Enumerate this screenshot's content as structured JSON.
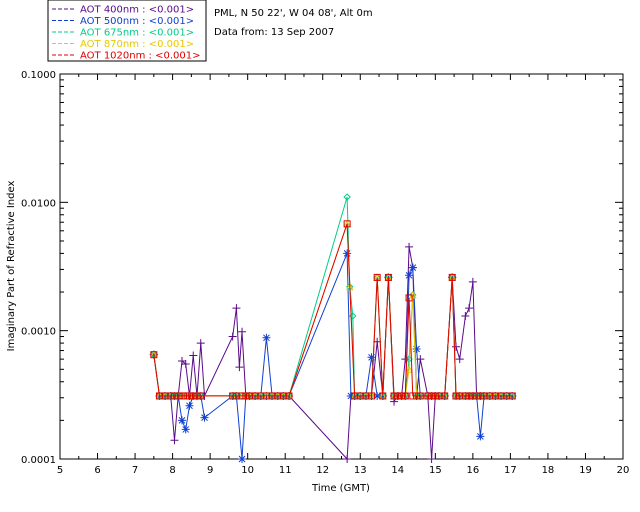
{
  "header": {
    "site": "PML, N 50 22', W 04 08', Alt 0m",
    "date": "Data from: 13 Sep 2007"
  },
  "colors": {
    "400": "#5a0a8a",
    "500": "#1040d0",
    "675": "#00cc88",
    "870": "#e8c800",
    "1020": "#e00000"
  },
  "chart_data": {
    "type": "line",
    "title": "",
    "xlabel": "Time (GMT)",
    "ylabel": "Imaginary Part of Refractive Index",
    "xlim": [
      5,
      20
    ],
    "ylim": [
      0.0001,
      0.1
    ],
    "yscale": "log",
    "x_ticks": [
      "5",
      "6",
      "7",
      "8",
      "9",
      "10",
      "11",
      "12",
      "13",
      "14",
      "15",
      "16",
      "17",
      "18",
      "19",
      "20"
    ],
    "y_ticks": [
      "0.0001",
      "0.0010",
      "0.0100",
      "0.1000"
    ],
    "legend_position": "top-left-outside",
    "series": [
      {
        "name": "AOT  400nm : <0.001>",
        "color_key": "400",
        "marker": "plus",
        "x": [
          7.5,
          7.65,
          7.8,
          7.95,
          8.05,
          8.15,
          8.25,
          8.35,
          8.45,
          8.55,
          8.65,
          8.75,
          8.85,
          9.6,
          9.7,
          9.78,
          9.85,
          9.95,
          10.05,
          10.2,
          10.35,
          10.5,
          10.65,
          10.8,
          10.95,
          11.1,
          12.65,
          12.75,
          12.85,
          13.0,
          13.15,
          13.3,
          13.45,
          13.6,
          13.75,
          13.9,
          14.0,
          14.1,
          14.2,
          14.3,
          14.4,
          14.5,
          14.6,
          14.8,
          14.9,
          15.0,
          15.1,
          15.25,
          15.45,
          15.55,
          15.65,
          15.8,
          15.9,
          16.0,
          16.1,
          16.2,
          16.3,
          16.45,
          16.6,
          16.75,
          16.9,
          17.05
        ],
        "y": [
          0.00065,
          0.00031,
          0.00031,
          0.00031,
          0.00014,
          0.00031,
          0.00058,
          0.00055,
          0.00031,
          0.00064,
          0.00031,
          0.0008,
          0.00031,
          0.0009,
          0.0015,
          0.00052,
          0.00098,
          0.00031,
          0.00031,
          0.00031,
          0.00031,
          0.00031,
          0.00031,
          0.00031,
          0.00031,
          0.00031,
          0.0001,
          0.00031,
          0.00031,
          0.00031,
          0.00031,
          0.00031,
          0.00082,
          0.00031,
          0.0026,
          0.00028,
          0.00031,
          0.00031,
          0.0006,
          0.0045,
          0.0031,
          0.00031,
          0.0006,
          0.00031,
          0.0001,
          0.00031,
          0.00031,
          0.00031,
          0.0026,
          0.00075,
          0.0006,
          0.0013,
          0.0015,
          0.0024,
          0.00031,
          0.00031,
          0.00031,
          0.00031,
          0.00031,
          0.00031,
          0.00031,
          0.00031
        ]
      },
      {
        "name": "AOT  500nm : <0.001>",
        "color_key": "500",
        "marker": "asterisk",
        "x": [
          7.5,
          7.65,
          7.8,
          7.95,
          8.05,
          8.15,
          8.25,
          8.35,
          8.45,
          8.55,
          8.65,
          8.75,
          8.85,
          9.6,
          9.7,
          9.85,
          9.95,
          10.05,
          10.2,
          10.35,
          10.5,
          10.65,
          10.8,
          10.95,
          11.1,
          12.65,
          12.75,
          12.85,
          13.0,
          13.15,
          13.3,
          13.45,
          13.6,
          13.75,
          13.9,
          14.0,
          14.1,
          14.2,
          14.3,
          14.4,
          14.5,
          14.6,
          14.8,
          14.9,
          15.0,
          15.1,
          15.25,
          15.45,
          15.55,
          15.65,
          15.8,
          15.9,
          16.0,
          16.1,
          16.2,
          16.3,
          16.45,
          16.6,
          16.75,
          16.9,
          17.05
        ],
        "y": [
          0.00065,
          0.00031,
          0.00031,
          0.00031,
          0.00031,
          0.00031,
          0.0002,
          0.00017,
          0.00026,
          0.00031,
          0.00031,
          0.00031,
          0.00021,
          0.00031,
          0.00031,
          0.0001,
          0.00031,
          0.00031,
          0.00031,
          0.00031,
          0.00088,
          0.00031,
          0.00031,
          0.00031,
          0.00031,
          0.004,
          0.00031,
          0.00031,
          0.00031,
          0.00031,
          0.00062,
          0.00031,
          0.00031,
          0.0026,
          0.00031,
          0.00031,
          0.00031,
          0.00031,
          0.0027,
          0.0031,
          0.00072,
          0.00031,
          0.00031,
          0.00031,
          0.00031,
          0.00031,
          0.00031,
          0.0026,
          0.00031,
          0.00031,
          0.00031,
          0.00031,
          0.00031,
          0.00031,
          0.00015,
          0.00031,
          0.00031,
          0.00031,
          0.00031,
          0.00031,
          0.00031
        ]
      },
      {
        "name": "AOT  675nm : <0.001>",
        "color_key": "675",
        "marker": "diamond",
        "x": [
          7.5,
          7.65,
          7.8,
          7.95,
          8.05,
          8.15,
          8.25,
          8.35,
          8.45,
          8.55,
          8.65,
          8.75,
          9.6,
          9.7,
          9.85,
          9.95,
          10.05,
          10.2,
          10.35,
          10.5,
          10.65,
          10.8,
          10.95,
          11.1,
          12.65,
          12.72,
          12.8,
          12.85,
          13.0,
          13.15,
          13.3,
          13.45,
          13.6,
          13.75,
          13.9,
          14.0,
          14.1,
          14.2,
          14.3,
          14.4,
          14.5,
          14.6,
          14.8,
          14.9,
          15.0,
          15.1,
          15.25,
          15.45,
          15.55,
          15.65,
          15.8,
          15.9,
          16.0,
          16.1,
          16.2,
          16.3,
          16.45,
          16.6,
          16.75,
          16.9,
          17.05
        ],
        "y": [
          0.00065,
          0.00031,
          0.00031,
          0.00031,
          0.00031,
          0.00031,
          0.00031,
          0.00031,
          0.00031,
          0.00031,
          0.00031,
          0.00031,
          0.00031,
          0.00031,
          0.00031,
          0.00031,
          0.00031,
          0.00031,
          0.00031,
          0.00031,
          0.00031,
          0.00031,
          0.00031,
          0.00031,
          0.011,
          0.0022,
          0.0013,
          0.00031,
          0.00031,
          0.00031,
          0.00031,
          0.0026,
          0.00031,
          0.0026,
          0.00031,
          0.00031,
          0.00031,
          0.00031,
          0.0006,
          0.0019,
          0.00031,
          0.00031,
          0.00031,
          0.00031,
          0.00031,
          0.00031,
          0.00031,
          0.0026,
          0.00031,
          0.00031,
          0.00031,
          0.00031,
          0.00031,
          0.00031,
          0.00031,
          0.00031,
          0.00031,
          0.00031,
          0.00031,
          0.00031,
          0.00031
        ]
      },
      {
        "name": "AOT  870nm : <0.001>",
        "color_key": "870",
        "marker": "triangle",
        "x": [
          7.5,
          7.65,
          7.8,
          7.95,
          8.05,
          8.15,
          8.25,
          8.35,
          8.45,
          8.55,
          8.65,
          8.75,
          9.6,
          9.7,
          9.85,
          9.95,
          10.05,
          10.2,
          10.35,
          10.5,
          10.65,
          10.8,
          10.95,
          11.1,
          12.65,
          12.72,
          12.85,
          13.0,
          13.15,
          13.3,
          13.45,
          13.6,
          13.75,
          13.9,
          14.0,
          14.1,
          14.2,
          14.3,
          14.4,
          14.5,
          14.6,
          14.8,
          14.9,
          15.0,
          15.1,
          15.25,
          15.45,
          15.55,
          15.65,
          15.8,
          15.9,
          16.0,
          16.1,
          16.2,
          16.3,
          16.45,
          16.6,
          16.75,
          16.9,
          17.05
        ],
        "y": [
          0.00065,
          0.00031,
          0.00031,
          0.00031,
          0.00031,
          0.00031,
          0.00031,
          0.00031,
          0.00031,
          0.00031,
          0.00031,
          0.00031,
          0.00031,
          0.00031,
          0.00031,
          0.00031,
          0.00031,
          0.00031,
          0.00031,
          0.00031,
          0.00031,
          0.00031,
          0.00031,
          0.00031,
          0.0068,
          0.0022,
          0.00031,
          0.00031,
          0.00031,
          0.00031,
          0.0026,
          0.00031,
          0.0026,
          0.00031,
          0.00031,
          0.00031,
          0.00031,
          0.0005,
          0.0019,
          0.00031,
          0.00031,
          0.00031,
          0.00031,
          0.00031,
          0.00031,
          0.00031,
          0.0026,
          0.00031,
          0.00031,
          0.00031,
          0.00031,
          0.00031,
          0.00031,
          0.00031,
          0.00031,
          0.00031,
          0.00031,
          0.00031,
          0.00031,
          0.00031
        ]
      },
      {
        "name": "AOT 1020nm : <0.001>",
        "color_key": "1020",
        "marker": "square",
        "x": [
          7.5,
          7.65,
          7.8,
          7.95,
          8.05,
          8.15,
          8.25,
          8.35,
          8.45,
          8.55,
          8.65,
          8.75,
          9.6,
          9.7,
          9.85,
          9.95,
          10.05,
          10.2,
          10.35,
          10.5,
          10.65,
          10.8,
          10.95,
          11.1,
          12.65,
          12.85,
          13.0,
          13.15,
          13.3,
          13.45,
          13.6,
          13.75,
          13.9,
          14.0,
          14.1,
          14.2,
          14.3,
          14.4,
          14.5,
          14.6,
          14.8,
          14.9,
          15.0,
          15.1,
          15.25,
          15.45,
          15.55,
          15.65,
          15.8,
          15.9,
          16.0,
          16.1,
          16.2,
          16.3,
          16.45,
          16.6,
          16.75,
          16.9,
          17.05
        ],
        "y": [
          0.00065,
          0.00031,
          0.00031,
          0.00031,
          0.00031,
          0.00031,
          0.00031,
          0.00031,
          0.00031,
          0.00031,
          0.00031,
          0.00031,
          0.00031,
          0.00031,
          0.00031,
          0.00031,
          0.00031,
          0.00031,
          0.00031,
          0.00031,
          0.00031,
          0.00031,
          0.00031,
          0.00031,
          0.0068,
          0.00031,
          0.00031,
          0.00031,
          0.00031,
          0.0026,
          0.00031,
          0.0026,
          0.00031,
          0.00031,
          0.00031,
          0.00031,
          0.0018,
          0.00031,
          0.00031,
          0.00031,
          0.00031,
          0.00031,
          0.00031,
          0.00031,
          0.00031,
          0.0026,
          0.00031,
          0.00031,
          0.00031,
          0.00031,
          0.00031,
          0.00031,
          0.00031,
          0.00031,
          0.00031,
          0.00031,
          0.00031,
          0.00031,
          0.00031
        ]
      }
    ]
  }
}
